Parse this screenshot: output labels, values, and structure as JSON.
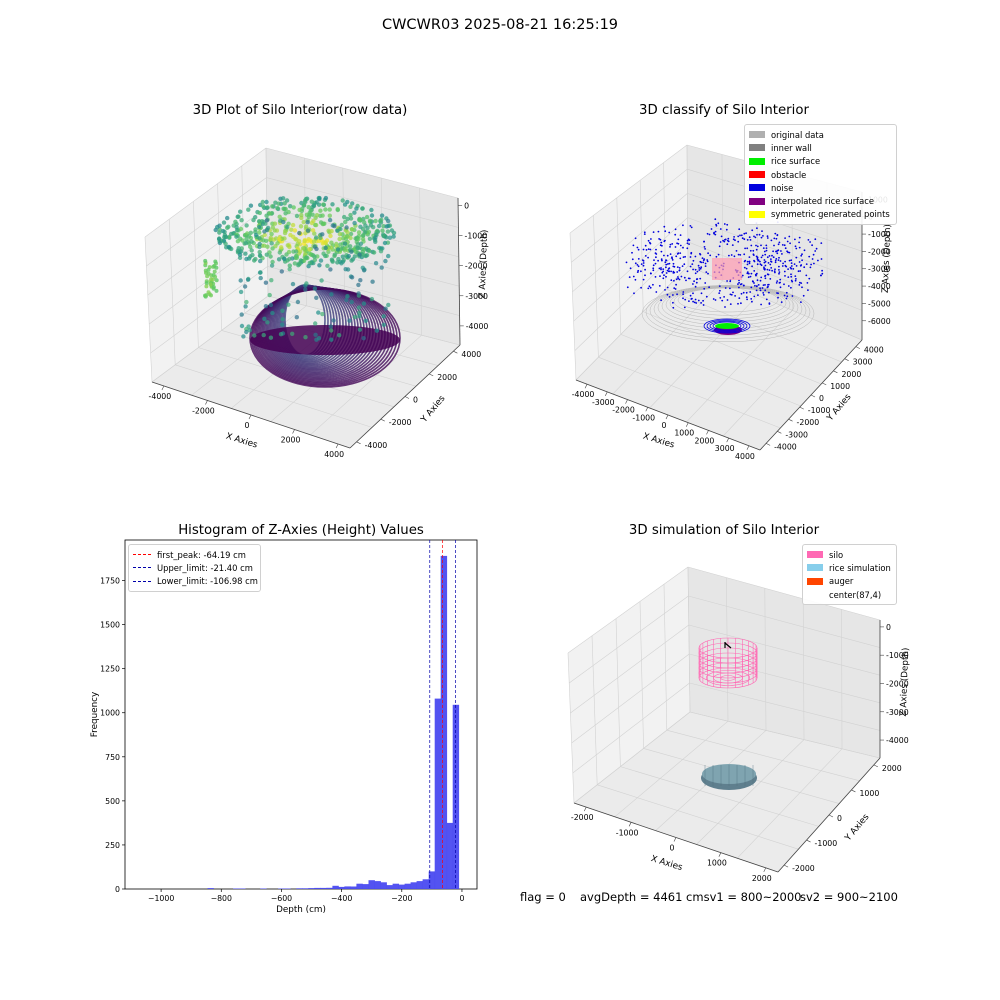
{
  "suptitle": "CWCWR03 2025-08-21 16:25:19",
  "footer": {
    "flag": "flag = 0",
    "avg": "avgDepth = 4461 cmsv1 = 800~2000",
    "sv2": "sv2 = 900~2100"
  },
  "chart_data": [
    {
      "type": "scatter",
      "title": "3D Plot of Silo Interior(row data)",
      "xlabel": "X Axies",
      "ylabel": "Y Axies",
      "zlabel": "Z Axies (Depth)",
      "x_ticks": [
        "-4000",
        "-2000",
        "0",
        "2000",
        "4000"
      ],
      "y_ticks": [
        "-4000",
        "-2000",
        "0",
        "2000",
        "4000"
      ],
      "z_ticks": [
        "0",
        "-1000",
        "-2000",
        "-3000",
        "-4000"
      ],
      "xlim": [
        -4500,
        4500
      ],
      "ylim": [
        -4500,
        4500
      ],
      "zlim": [
        -4700,
        200
      ],
      "colormap": "viridis",
      "grid": true
    },
    {
      "type": "scatter",
      "title": "3D classify of Silo Interior",
      "xlabel": "X Axies",
      "ylabel": "Y Axies",
      "zlabel": "Z Axies (Depth)",
      "x_ticks": [
        "-4000",
        "-3000",
        "-2000",
        "-1000",
        "0",
        "1000",
        "2000",
        "3000",
        "4000"
      ],
      "y_ticks": [
        "-4000",
        "-3000",
        "-2000",
        "-1000",
        "0",
        "1000",
        "2000",
        "3000",
        "4000"
      ],
      "z_ticks": [
        "1000",
        "0",
        "-1000",
        "-2000",
        "-3000",
        "-4000",
        "-5000",
        "-6000"
      ],
      "legend": [
        {
          "label": "original data",
          "color": "#b0b0b0"
        },
        {
          "label": "inner wall",
          "color": "#808080"
        },
        {
          "label": "rice surface",
          "color": "#00ee00"
        },
        {
          "label": "obstacle",
          "color": "#ff0000"
        },
        {
          "label": "noise",
          "color": "#0000dd"
        },
        {
          "label": "interpolated rice surface",
          "color": "#800080"
        },
        {
          "label": "symmetric generated points",
          "color": "#ffff00"
        }
      ],
      "legend_loc": "upper right",
      "grid": true
    },
    {
      "type": "bar",
      "title": "Histogram of Z-Axies (Height) Values",
      "xlabel": "Depth (cm)",
      "ylabel": "Frequency",
      "xlim": [
        -1120,
        50
      ],
      "ylim": [
        0,
        1980
      ],
      "x_ticks": [
        -1000,
        -800,
        -600,
        -400,
        -200,
        0
      ],
      "y_ticks": [
        0,
        250,
        500,
        750,
        1000,
        1250,
        1500,
        1750
      ],
      "bin_width": 21.4,
      "bins": [
        {
          "x": -835,
          "v": 5
        },
        {
          "x": -750,
          "v": 3
        },
        {
          "x": -730,
          "v": 3
        },
        {
          "x": -660,
          "v": 3
        },
        {
          "x": -600,
          "v": 3
        },
        {
          "x": -580,
          "v": 3
        },
        {
          "x": -540,
          "v": 4
        },
        {
          "x": -520,
          "v": 4
        },
        {
          "x": -500,
          "v": 5
        },
        {
          "x": -480,
          "v": 6
        },
        {
          "x": -460,
          "v": 6
        },
        {
          "x": -440,
          "v": 7
        },
        {
          "x": -420,
          "v": 18
        },
        {
          "x": -400,
          "v": 12
        },
        {
          "x": -380,
          "v": 15
        },
        {
          "x": -360,
          "v": 14
        },
        {
          "x": -340,
          "v": 30
        },
        {
          "x": -320,
          "v": 28
        },
        {
          "x": -300,
          "v": 50
        },
        {
          "x": -280,
          "v": 45
        },
        {
          "x": -260,
          "v": 38
        },
        {
          "x": -240,
          "v": 22
        },
        {
          "x": -220,
          "v": 30
        },
        {
          "x": -200,
          "v": 25
        },
        {
          "x": -180,
          "v": 30
        },
        {
          "x": -160,
          "v": 38
        },
        {
          "x": -140,
          "v": 45
        },
        {
          "x": -120,
          "v": 55
        },
        {
          "x": -100,
          "v": 100
        },
        {
          "x": -80,
          "v": 1080
        },
        {
          "x": -60,
          "v": 1890
        },
        {
          "x": -40,
          "v": 375
        },
        {
          "x": -20,
          "v": 1045
        }
      ],
      "vlines": [
        {
          "label": "first_peak: -64.19 cm",
          "x": -64.19,
          "color": "#ff0000"
        },
        {
          "label": "Upper_limit: -21.40 cm",
          "x": -21.4,
          "color": "#0000aa"
        },
        {
          "label": "Lower_limit: -106.98 cm",
          "x": -106.98,
          "color": "#0000aa"
        }
      ],
      "bar_color": "#4a4af0"
    },
    {
      "type": "scatter",
      "title": "3D simulation of Silo Interior",
      "xlabel": "X Axies",
      "ylabel": "Y Axies",
      "zlabel": "Z Axies (Depth)",
      "x_ticks": [
        "-2000",
        "-1000",
        "0",
        "1000",
        "2000"
      ],
      "y_ticks": [
        "-2000",
        "-1000",
        "0",
        "1000",
        "2000"
      ],
      "z_ticks": [
        "0",
        "-1000",
        "-2000",
        "-3000",
        "-4000"
      ],
      "legend": [
        {
          "label": "silo",
          "color": "#ff69b4"
        },
        {
          "label": "rice simulation",
          "color": "#87ceeb"
        },
        {
          "label": "auger",
          "color": "#ff4500"
        },
        {
          "label": "center(87,4)",
          "color": "#ffffff"
        }
      ],
      "legend_loc": "upper right",
      "grid": true
    }
  ]
}
